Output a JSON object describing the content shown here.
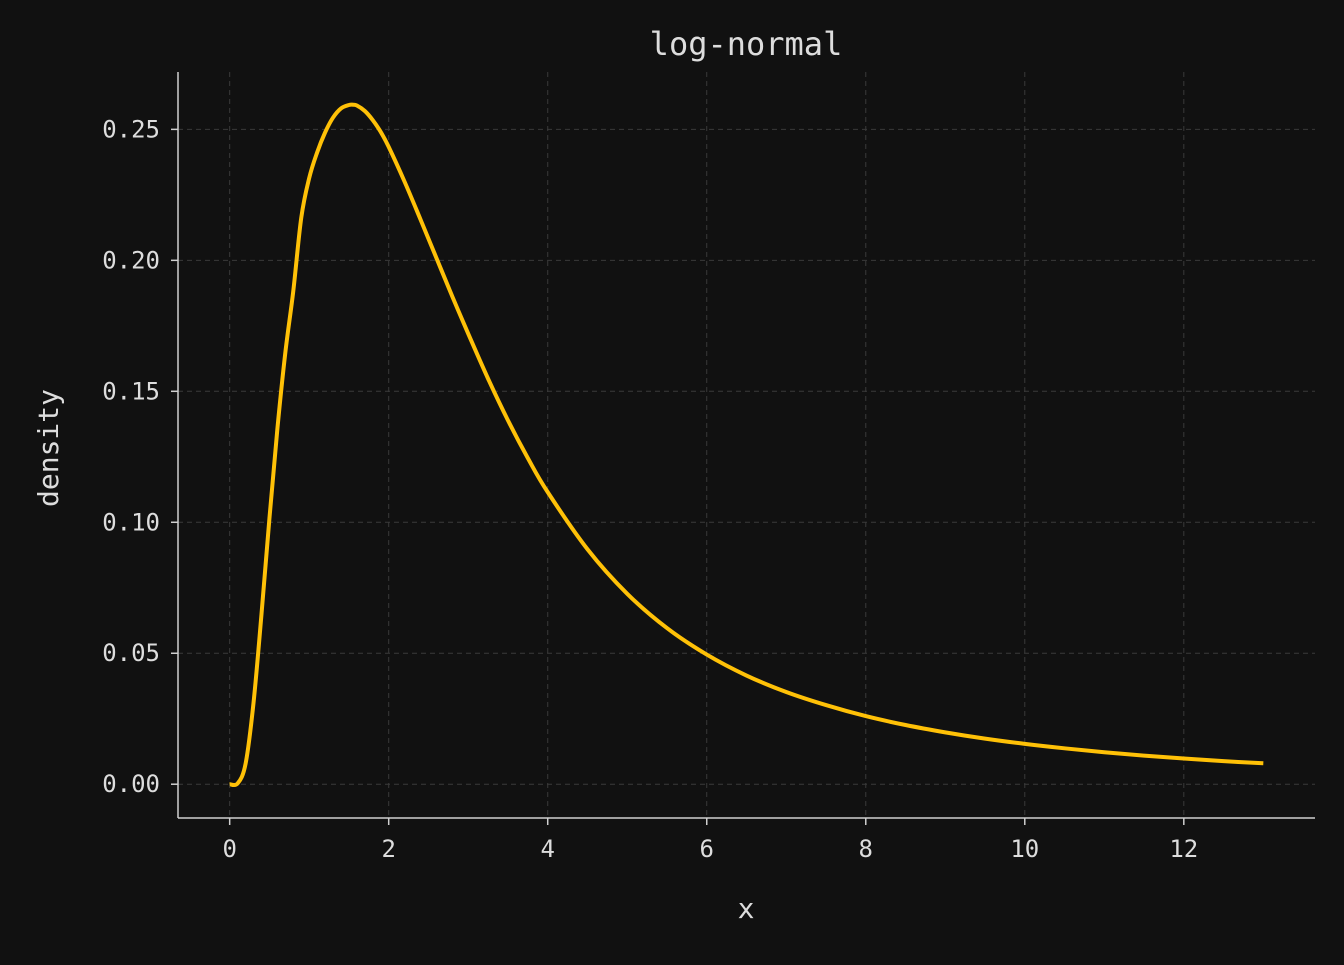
{
  "chart_data": {
    "type": "line",
    "title": "log-normal",
    "xlabel": "x",
    "ylabel": "density",
    "xlim": [
      -0.65,
      13.65
    ],
    "ylim": [
      -0.0129,
      0.2719
    ],
    "xticks": [
      0,
      2,
      4,
      6,
      8,
      10,
      12
    ],
    "xtick_labels": [
      "0",
      "2",
      "4",
      "6",
      "8",
      "10",
      "12"
    ],
    "yticks": [
      0.0,
      0.05,
      0.1,
      0.15,
      0.2,
      0.25
    ],
    "ytick_labels": [
      "0.00",
      "0.05",
      "0.10",
      "0.15",
      "0.20",
      "0.25"
    ],
    "grid": true,
    "series": [
      {
        "color": "#ffc107",
        "x": [
          0,
          0.1,
          0.2,
          0.3,
          0.4,
          0.5,
          0.6,
          0.7,
          0.8,
          0.9,
          1.0,
          1.1,
          1.2,
          1.3,
          1.4,
          1.5,
          1.55,
          1.6,
          1.7,
          1.8,
          1.9,
          2.0,
          2.2,
          2.4,
          2.6,
          2.8,
          3.0,
          3.25,
          3.5,
          3.75,
          4.0,
          4.5,
          5.0,
          5.5,
          6.0,
          6.5,
          7.0,
          7.5,
          8.0,
          8.5,
          9.0,
          9.5,
          10.0,
          10.5,
          11.0,
          11.5,
          12.0,
          12.5,
          13.0
        ],
        "y": [
          0.0,
          0.0003,
          0.0078,
          0.0311,
          0.0649,
          0.1015,
          0.1357,
          0.1648,
          0.1883,
          0.2162,
          0.2314,
          0.2412,
          0.2488,
          0.2545,
          0.258,
          0.2593,
          0.2594,
          0.2591,
          0.257,
          0.2535,
          0.249,
          0.2433,
          0.23,
          0.2156,
          0.2009,
          0.1862,
          0.172,
          0.1548,
          0.1389,
          0.1245,
          0.1115,
          0.0897,
          0.0727,
          0.0596,
          0.0495,
          0.0415,
          0.0352,
          0.0302,
          0.026,
          0.0226,
          0.0198,
          0.0174,
          0.0154,
          0.0137,
          0.0122,
          0.0109,
          0.0098,
          0.0088,
          0.008
        ]
      }
    ]
  }
}
